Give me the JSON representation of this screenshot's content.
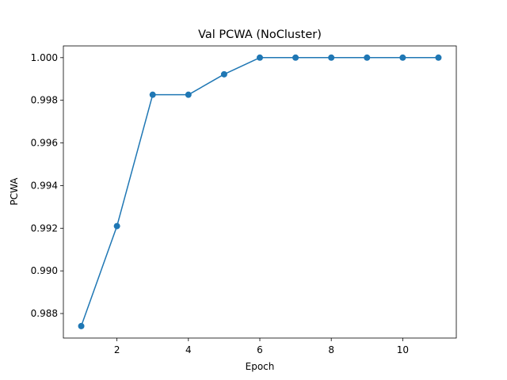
{
  "chart_data": {
    "type": "line",
    "title": "Val PCWA (NoCluster)",
    "xlabel": "Epoch",
    "ylabel": "PCWA",
    "xlim": [
      0.5,
      11.5
    ],
    "ylim": [
      0.98685,
      1.00055
    ],
    "x_ticks": [
      2,
      4,
      6,
      8,
      10
    ],
    "x_tick_labels": [
      "2",
      "4",
      "6",
      "8",
      "10"
    ],
    "y_ticks": [
      0.988,
      0.99,
      0.992,
      0.994,
      0.996,
      0.998,
      1.0
    ],
    "y_tick_labels": [
      "0.988",
      "0.990",
      "0.992",
      "0.994",
      "0.996",
      "0.998",
      "1.000"
    ],
    "grid": false,
    "legend": "none",
    "series": [
      {
        "color": "#1f77b4",
        "marker": "circle",
        "x": [
          1,
          2,
          3,
          4,
          5,
          6,
          7,
          8,
          9,
          10,
          11
        ],
        "y": [
          0.98741,
          0.9921,
          0.99826,
          0.99826,
          0.99922,
          1.0,
          1.0,
          1.0,
          1.0,
          1.0,
          1.0
        ]
      }
    ]
  }
}
